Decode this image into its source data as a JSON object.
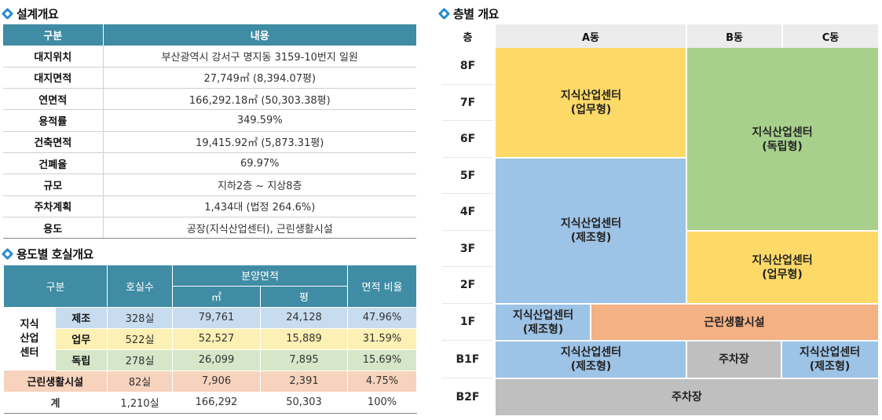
{
  "section1": {
    "title": "설계개요"
  },
  "design_table": {
    "headers": [
      "구분",
      "내용"
    ],
    "rows": [
      {
        "label": "대지위치",
        "value": "부산광역시 강서구 명지동 3159-10번지 일원"
      },
      {
        "label": "대지면적",
        "value": "27,749㎡ (8,394.07평)"
      },
      {
        "label": "연면적",
        "value": "166,292.18㎡ (50,303.38평)"
      },
      {
        "label": "용적률",
        "value": "349.59%"
      },
      {
        "label": "건축면적",
        "value": "19,415.92㎡ (5,873.31평)"
      },
      {
        "label": "건폐율",
        "value": "69.97%"
      },
      {
        "label": "규모",
        "value": "지하2층 ~ 지상8층"
      },
      {
        "label": "주차계획",
        "value": "1,434대 (법정 264.6%)"
      },
      {
        "label": "용도",
        "value": "공장(지식산업센터), 근린생활시설"
      }
    ]
  },
  "section2": {
    "title": "용도별 호실개요"
  },
  "unit_table": {
    "headers": {
      "category": "구분",
      "units": "호실수",
      "sale_area": "분양면적",
      "sqm": "㎡",
      "pyeong": "평",
      "ratio": "면적 비율"
    },
    "group_label": "지식\n산업\n센터",
    "rows": [
      {
        "sub": "제조",
        "units": "328실",
        "sqm": "79,761",
        "pyeong": "24,128",
        "ratio": "47.96%"
      },
      {
        "sub": "업무",
        "units": "522실",
        "sqm": "52,527",
        "pyeong": "15,889",
        "ratio": "31.59%"
      },
      {
        "sub": "독립",
        "units": "278실",
        "sqm": "26,099",
        "pyeong": "7,895",
        "ratio": "15.69%"
      }
    ],
    "living": {
      "label": "근린생활시설",
      "units": "82실",
      "sqm": "7,906",
      "pyeong": "2,391",
      "ratio": "4.75%"
    },
    "total": {
      "label": "계",
      "units": "1,210실",
      "sqm": "166,292",
      "pyeong": "50,303",
      "ratio": "100%"
    }
  },
  "section3": {
    "title": "층별 개요"
  },
  "floor_diagram": {
    "header": {
      "floor": "층",
      "a": "A동",
      "b": "B동",
      "c": "C동"
    },
    "floors": [
      "8F",
      "7F",
      "6F",
      "5F",
      "4F",
      "3F",
      "2F",
      "1F",
      "B1F",
      "B2F"
    ],
    "blocks": {
      "a_office": "지식산업센터\n(업무형)",
      "bc_independent": "지식산업센터\n(독립형)",
      "a_manufacturing": "지식산업센터\n(제조형)",
      "bc_office": "지식산업센터\n(업무형)",
      "a_1f_manufacturing": "지식산업센터\n(제조형)",
      "living_1f": "근린생활시설",
      "a_b1_manufacturing": "지식산업센터\n(제조형)",
      "b_b1_parking": "주차장",
      "c_b1_manufacturing": "지식산업센터\n(제조형)",
      "b2_parking": "주차장"
    },
    "colors": {
      "yellow": "#fdd968",
      "green": "#a8d08d",
      "blue": "#9dc3e6",
      "orange": "#f4b183",
      "gray": "#bfbfbf",
      "header": "#ececec"
    }
  }
}
